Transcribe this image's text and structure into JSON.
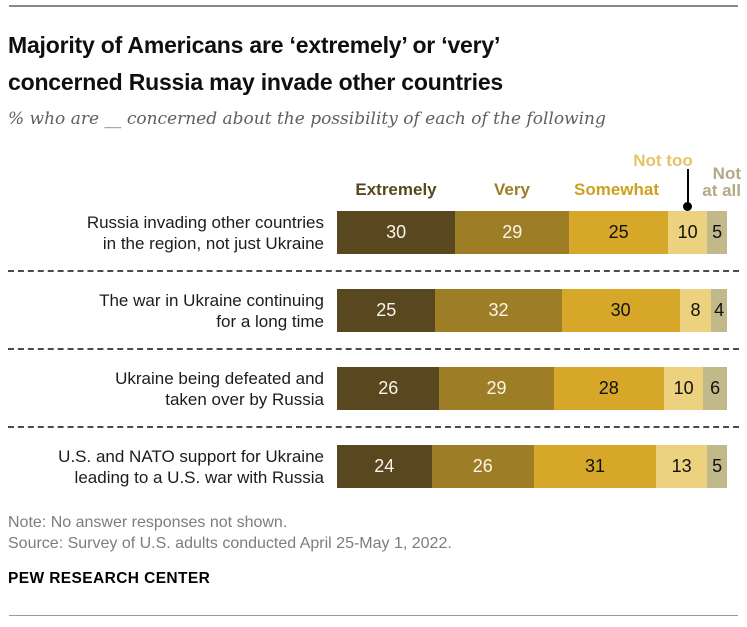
{
  "header": {
    "title_line1": "Majority of Americans are ‘extremely’ or ‘very’",
    "title_line2": "concerned Russia may invade other countries",
    "subtitle": "% who are __ concerned about the possibility of each of the following"
  },
  "chart_data": {
    "type": "bar",
    "subtype": "horizontal-stacked",
    "unit": "percent",
    "xlim": [
      0,
      100
    ],
    "legend": [
      "Extremely",
      "Very",
      "Somewhat",
      "Not too",
      "Not at all"
    ],
    "colors": [
      "#59481f",
      "#9d7e26",
      "#d6a728",
      "#ecd27e",
      "#c1b98a"
    ],
    "legend_colors": [
      "#59481f",
      "#9d7e26",
      "#cfa01f",
      "#e5c468",
      "#b2aa84"
    ],
    "value_label_colors": [
      "#faf5ea",
      "#faf5ea",
      "#111111",
      "#111111",
      "#111111"
    ],
    "categories": [
      "Russia invading other countries in the region, not just Ukraine",
      "The war in Ukraine continuing for a long time",
      "Ukraine being defeated and taken over by Russia",
      "U.S. and NATO support for Ukraine leading to a U.S. war with Russia"
    ],
    "rows": [
      {
        "label_lines": [
          "Russia invading other countries",
          "in the region, not just Ukraine"
        ],
        "values": [
          30,
          29,
          25,
          10,
          5
        ]
      },
      {
        "label_lines": [
          "The war in Ukraine continuing",
          "for a long time"
        ],
        "values": [
          25,
          32,
          30,
          8,
          4
        ]
      },
      {
        "label_lines": [
          "Ukraine being defeated and",
          "taken over by Russia"
        ],
        "values": [
          26,
          29,
          28,
          10,
          6
        ]
      },
      {
        "label_lines": [
          "U.S. and NATO support for Ukraine",
          "leading to a U.S. war with Russia"
        ],
        "values": [
          24,
          26,
          31,
          13,
          5
        ]
      }
    ]
  },
  "footer": {
    "note": "Note: No answer responses not shown.",
    "source": "Source: Survey of U.S. adults conducted April 25-May 1, 2022.",
    "brand": "PEW RESEARCH CENTER"
  }
}
